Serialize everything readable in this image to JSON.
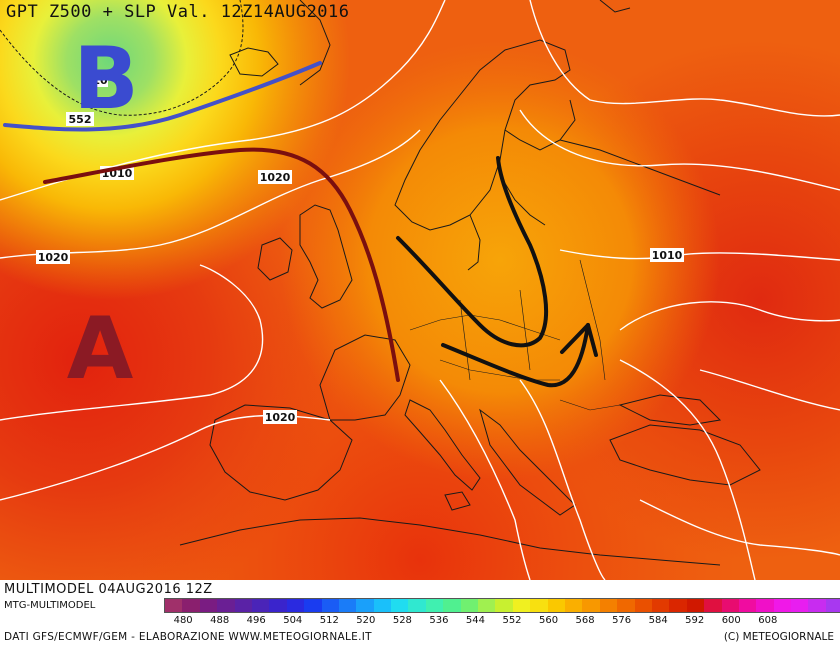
{
  "header": {
    "title": "GPT Z500 + SLP Val. 12Z14AUG2016"
  },
  "map": {
    "pressure_centers": [
      {
        "letter": "B",
        "meaning": "low",
        "color": "#3a4bd0"
      },
      {
        "letter": "A",
        "meaning": "high",
        "color": "#8b1a24"
      }
    ],
    "isobar_labels": [
      "552",
      "1010",
      "1020",
      "1020",
      "1020",
      "1010",
      "10"
    ],
    "colors": {
      "isobars": "#ffffff",
      "jet_line_blue": "#4451c8",
      "jet_line_red": "#7a0f0f",
      "flow_arrows": "#111111",
      "coastline": "#1a1a1a"
    }
  },
  "footer": {
    "run": "MULTIMODEL 04AUG2016 12Z",
    "model": "MTG-MULTIMODEL",
    "sources": "DATI GFS/ECMWF/GEM - ELABORAZIONE WWW.METEOGIORNALE.IT",
    "copyright": "(C) METEOGIORNALE"
  },
  "legend": {
    "tick_labels": [
      "480",
      "488",
      "496",
      "504",
      "512",
      "520",
      "528",
      "536",
      "544",
      "552",
      "560",
      "568",
      "576",
      "584",
      "592",
      "600",
      "608"
    ],
    "colors": [
      "#a0306a",
      "#8a1f6e",
      "#7a1c82",
      "#6a1f94",
      "#5a22a6",
      "#4a24b8",
      "#3a24cc",
      "#2a2ae0",
      "#1a3cf0",
      "#1a5cf5",
      "#1a7cf8",
      "#1aa0fa",
      "#1ac0fa",
      "#20dcf0",
      "#30e8d0",
      "#40f0b0",
      "#50f090",
      "#70f070",
      "#a0f050",
      "#c8f030",
      "#f0f020",
      "#f8e010",
      "#fac800",
      "#faaf00",
      "#f89800",
      "#f48000",
      "#f06800",
      "#ea5000",
      "#e23a00",
      "#da2600",
      "#d01800",
      "#e01040",
      "#e80c70",
      "#f00ca0",
      "#f010c8",
      "#f018e8",
      "#e81ef0",
      "#c82cf0",
      "#a838f0"
    ]
  }
}
